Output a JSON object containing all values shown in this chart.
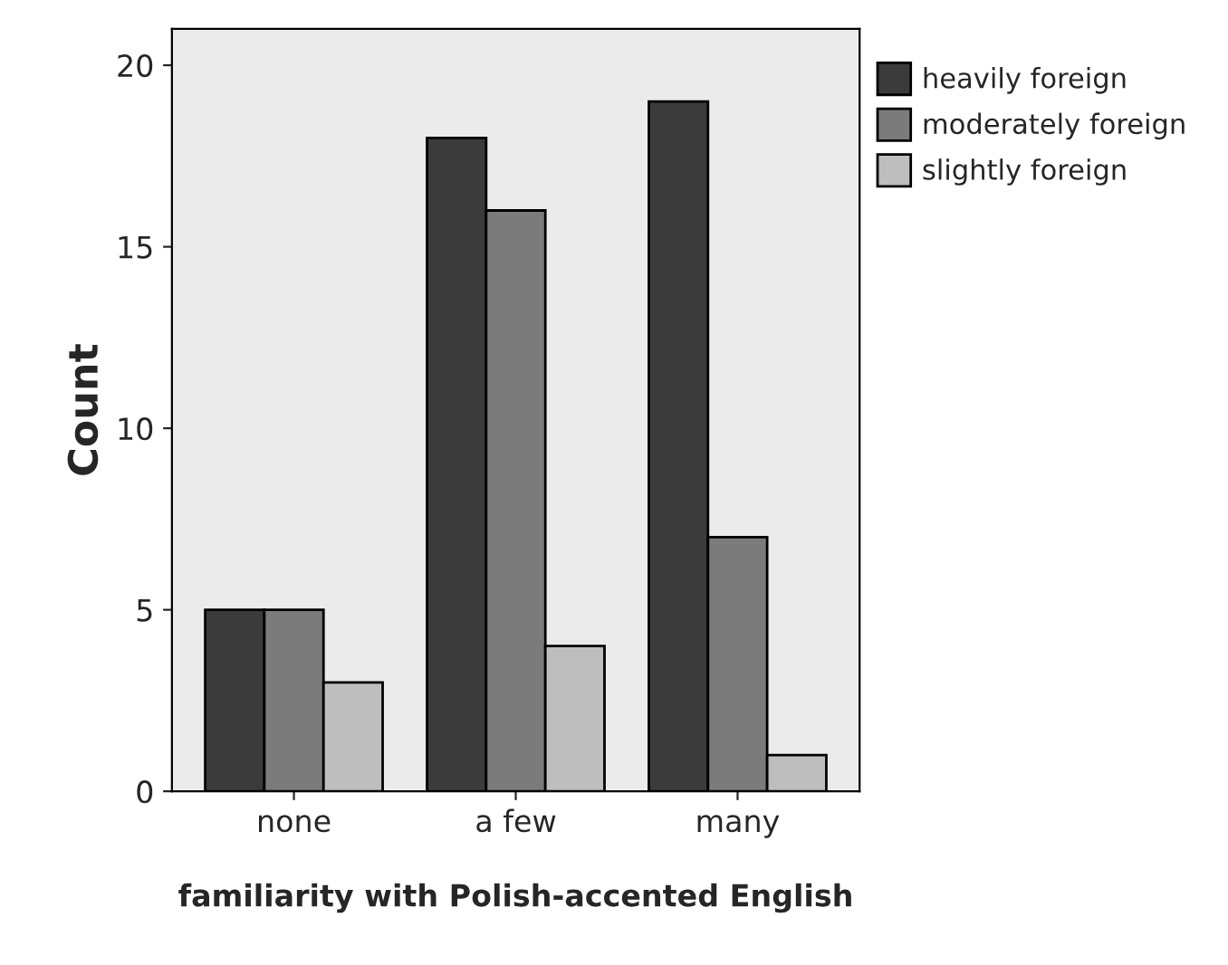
{
  "chart_data": {
    "type": "bar",
    "xlabel": "familiarity with Polish-accented English",
    "ylabel": "Count",
    "categories": [
      "none",
      "a few",
      "many"
    ],
    "series": [
      {
        "name": "heavily foreign",
        "color": "#3b3b3b",
        "values": [
          5,
          18,
          19
        ]
      },
      {
        "name": "moderately foreign",
        "color": "#7b7b7b",
        "values": [
          5,
          16,
          7
        ]
      },
      {
        "name": "slightly foreign",
        "color": "#bebebe",
        "values": [
          3,
          4,
          1
        ]
      }
    ],
    "ylim": [
      0,
      21
    ],
    "yticks": [
      0,
      5,
      10,
      15,
      20
    ],
    "grid": false,
    "legend": "top right"
  }
}
